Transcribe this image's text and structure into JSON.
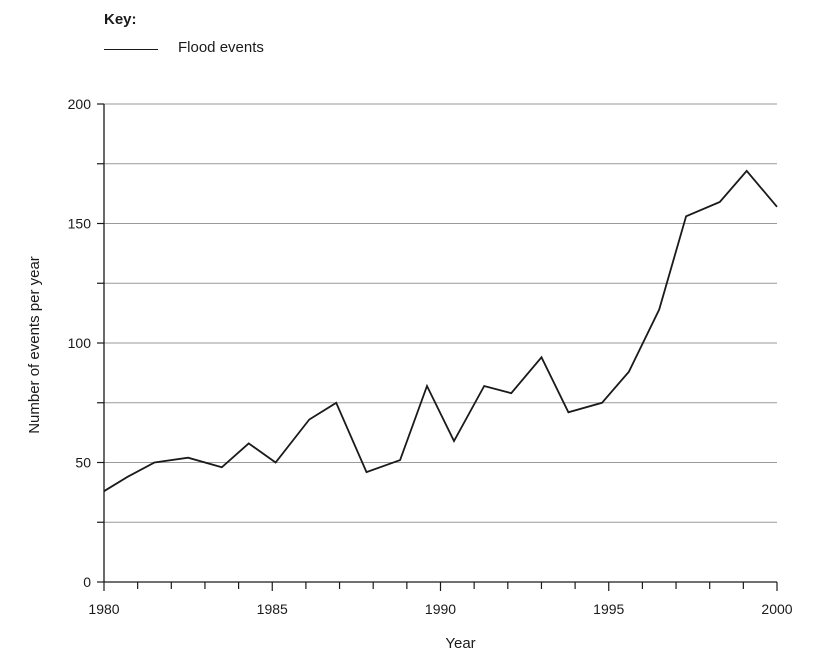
{
  "chart_data": {
    "type": "line",
    "legend_title": "Key:",
    "legend_position": "top-left",
    "xlabel": "Year",
    "ylabel": "Number of events per year",
    "xlim": [
      1980,
      2000
    ],
    "ylim": [
      0,
      200
    ],
    "x_ticks": [
      1980,
      1985,
      1990,
      1995,
      2000
    ],
    "y_ticks": [
      0,
      50,
      100,
      150,
      200
    ],
    "y_gridlines": [
      25,
      50,
      75,
      100,
      125,
      150,
      175,
      200
    ],
    "grid": true,
    "series": [
      {
        "name": "Flood events",
        "color": "#1a1a1a",
        "points": [
          [
            1980,
            38
          ],
          [
            1980.7,
            44
          ],
          [
            1981.5,
            50
          ],
          [
            1982.5,
            52
          ],
          [
            1983.5,
            48
          ],
          [
            1984.3,
            58
          ],
          [
            1985.1,
            50
          ],
          [
            1986.1,
            68
          ],
          [
            1986.9,
            75
          ],
          [
            1987.8,
            46
          ],
          [
            1988.8,
            51
          ],
          [
            1989.6,
            82
          ],
          [
            1990.4,
            59
          ],
          [
            1991.3,
            82
          ],
          [
            1992.1,
            79
          ],
          [
            1993,
            94
          ],
          [
            1993.8,
            71
          ],
          [
            1994.8,
            75
          ],
          [
            1995.6,
            88
          ],
          [
            1996.5,
            114
          ],
          [
            1997.3,
            153
          ],
          [
            1998.3,
            159
          ],
          [
            1999.1,
            172
          ],
          [
            2000,
            157
          ]
        ]
      }
    ]
  }
}
